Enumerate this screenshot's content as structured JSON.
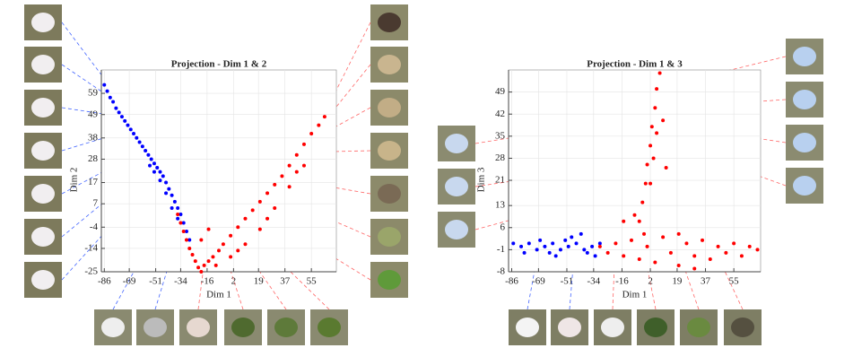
{
  "chart_data": [
    {
      "type": "scatter",
      "title": "Projection - Dim 1 & 2",
      "x_label": "Dim 1",
      "y_label": "Dim 2",
      "xlim": [
        -88,
        72
      ],
      "ylim": [
        -25,
        70
      ],
      "xticks": [
        -86,
        -69,
        -51,
        -34,
        -16,
        2,
        19,
        37,
        55
      ],
      "yticks": [
        -25,
        -14,
        -4,
        7,
        17,
        28,
        38,
        49,
        59
      ],
      "grid": true,
      "series": [
        {
          "color": "#0000ff",
          "x": [
            -86,
            -84,
            -82,
            -80,
            -78,
            -76,
            -74,
            -72,
            -70,
            -68,
            -66,
            -64,
            -62,
            -60,
            -58,
            -56,
            -54,
            -52,
            -50,
            -48,
            -46,
            -44,
            -42,
            -40,
            -38,
            -36,
            -34,
            -32,
            -30,
            -28,
            -55,
            -48,
            -44,
            -40,
            -36,
            -52
          ],
          "y": [
            63,
            60,
            57,
            55,
            52,
            50,
            48,
            46,
            44,
            42,
            40,
            38,
            36,
            34,
            32,
            30,
            28,
            26,
            24,
            22,
            20,
            17,
            14,
            11,
            8,
            5,
            2,
            -2,
            -6,
            -10,
            25,
            18,
            12,
            5,
            0,
            22
          ]
        },
        {
          "color": "#ff0000",
          "x": [
            -36,
            -34,
            -32,
            -30,
            -28,
            -26,
            -24,
            -22,
            -20,
            -18,
            -15,
            -12,
            -8,
            -5,
            0,
            5,
            10,
            15,
            20,
            25,
            30,
            35,
            40,
            45,
            50,
            55,
            60,
            64,
            -10,
            0,
            10,
            20,
            30,
            40,
            50,
            -20,
            -15,
            5,
            25,
            45
          ],
          "y": [
            2,
            -2,
            -6,
            -10,
            -14,
            -17,
            -20,
            -23,
            -25,
            -22,
            -20,
            -18,
            -15,
            -12,
            -8,
            -4,
            0,
            4,
            8,
            12,
            16,
            20,
            25,
            30,
            35,
            40,
            44,
            48,
            -22,
            -18,
            -12,
            -5,
            5,
            15,
            25,
            -10,
            -5,
            -15,
            0,
            22
          ]
        }
      ]
    },
    {
      "type": "scatter",
      "title": "Projection - Dim 1 & 3",
      "x_label": "Dim 1",
      "y_label": "Dim 3",
      "xlim": [
        -88,
        72
      ],
      "ylim": [
        -8,
        56
      ],
      "xticks": [
        -86,
        -69,
        -51,
        -34,
        -16,
        2,
        19,
        37,
        55
      ],
      "yticks": [
        -8,
        -1,
        6,
        13,
        21,
        28,
        35,
        42,
        49
      ],
      "grid": true,
      "series": [
        {
          "color": "#0000ff",
          "x": [
            -85,
            -80,
            -75,
            -70,
            -65,
            -60,
            -55,
            -50,
            -45,
            -40,
            -35,
            -30,
            -78,
            -68,
            -58,
            -48,
            -38,
            -62,
            -52,
            -42,
            -33
          ],
          "y": [
            1,
            0,
            1,
            -1,
            0,
            1,
            -1,
            0,
            1,
            -1,
            0,
            1,
            -2,
            2,
            -3,
            3,
            -2,
            -2,
            2,
            4,
            -3
          ]
        },
        {
          "color": "#ff0000",
          "x": [
            -30,
            -25,
            -20,
            -15,
            -10,
            -5,
            0,
            5,
            10,
            15,
            20,
            25,
            30,
            35,
            40,
            45,
            50,
            55,
            60,
            65,
            70,
            -5,
            -3,
            -1,
            0,
            2,
            3,
            5,
            6,
            8,
            2,
            -8,
            4,
            6,
            -15,
            10,
            12,
            -2,
            20,
            30
          ],
          "y": [
            0,
            -2,
            1,
            -3,
            2,
            -4,
            0,
            -5,
            3,
            -2,
            -6,
            1,
            -3,
            2,
            -4,
            0,
            -2,
            1,
            -3,
            0,
            -1,
            8,
            14,
            20,
            26,
            32,
            38,
            44,
            50,
            55,
            20,
            10,
            28,
            36,
            8,
            40,
            25,
            4,
            4,
            -7
          ]
        }
      ]
    }
  ]
}
